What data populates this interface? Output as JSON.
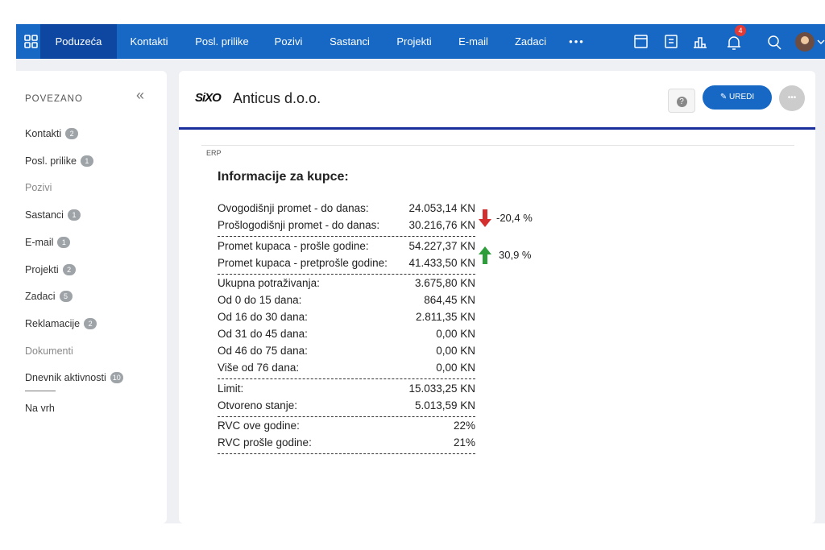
{
  "nav": {
    "items": [
      {
        "label": "Poduzeća",
        "color": "#0d47a1"
      },
      {
        "label": "Kontakti",
        "color": "#1565c0"
      },
      {
        "label": "Posl. prilike",
        "color": "#9c27b0"
      },
      {
        "label": "Pozivi",
        "color": "#1e88e5"
      },
      {
        "label": "Sastanci",
        "color": "#43a047"
      },
      {
        "label": "Projekti",
        "color": "#b5a21a"
      },
      {
        "label": "E-mail",
        "color": "#1ba39c"
      },
      {
        "label": "Zadaci",
        "color": "#e53935"
      }
    ],
    "more": "•••",
    "notifications": "4"
  },
  "sidebar": {
    "title": "POVEZANO",
    "collapse": "«",
    "items": [
      {
        "label": "Kontakti",
        "count": "2"
      },
      {
        "label": "Posl. prilike",
        "count": "1"
      },
      {
        "label": "Pozivi"
      },
      {
        "label": "Sastanci",
        "count": "1"
      },
      {
        "label": "E-mail",
        "count": "1"
      },
      {
        "label": "Projekti",
        "count": "2"
      },
      {
        "label": "Zadaci",
        "count": "5"
      },
      {
        "label": "Reklamacije",
        "count": "2"
      },
      {
        "label": "Dokumenti"
      },
      {
        "label": "Dnevnik aktivnosti",
        "count": "10"
      }
    ],
    "footer_link": "Na vrh"
  },
  "header": {
    "logo": "SiXO",
    "title": "Anticus d.o.o.",
    "help": "?",
    "edit_button": "UREDI",
    "more": "•••"
  },
  "section": {
    "label": "ERP",
    "title": "Informacije za kupce:"
  },
  "table": {
    "groups": [
      {
        "rows": [
          [
            "Ovogodišnji promet - do danas:",
            "24.053,14 KN"
          ],
          [
            "Prošlogodišnji promet - do danas:",
            "30.216,76 KN"
          ]
        ],
        "change": "-20,4 %"
      },
      {
        "rows": [
          [
            "Promet kupaca - prošle godine:",
            "54.227,37 KN"
          ],
          [
            "Promet kupaca - pretprošle godine:",
            "41.433,50 KN"
          ]
        ],
        "change": "30,9 %"
      },
      {
        "rows": [
          [
            "Ukupna potraživanja:",
            "3.675,80 KN"
          ],
          [
            "Od 0 do 15 dana:",
            "864,45 KN"
          ],
          [
            "Od 16 do 30 dana:",
            "2.811,35 KN"
          ],
          [
            "Od 31 do 45 dana:",
            "0,00 KN"
          ],
          [
            "Od 46 do 75 dana:",
            "0,00 KN"
          ],
          [
            "Više od 76 dana:",
            "0,00 KN"
          ]
        ]
      },
      {
        "rows": [
          [
            "Limit:",
            "15.033,25 KN"
          ],
          [
            "Otvoreno stanje:",
            "5.013,59 KN"
          ]
        ]
      },
      {
        "rows": [
          [
            "RVC ove godine:",
            "22%"
          ],
          [
            "RVC prošle godine:",
            "21%"
          ]
        ]
      }
    ]
  }
}
